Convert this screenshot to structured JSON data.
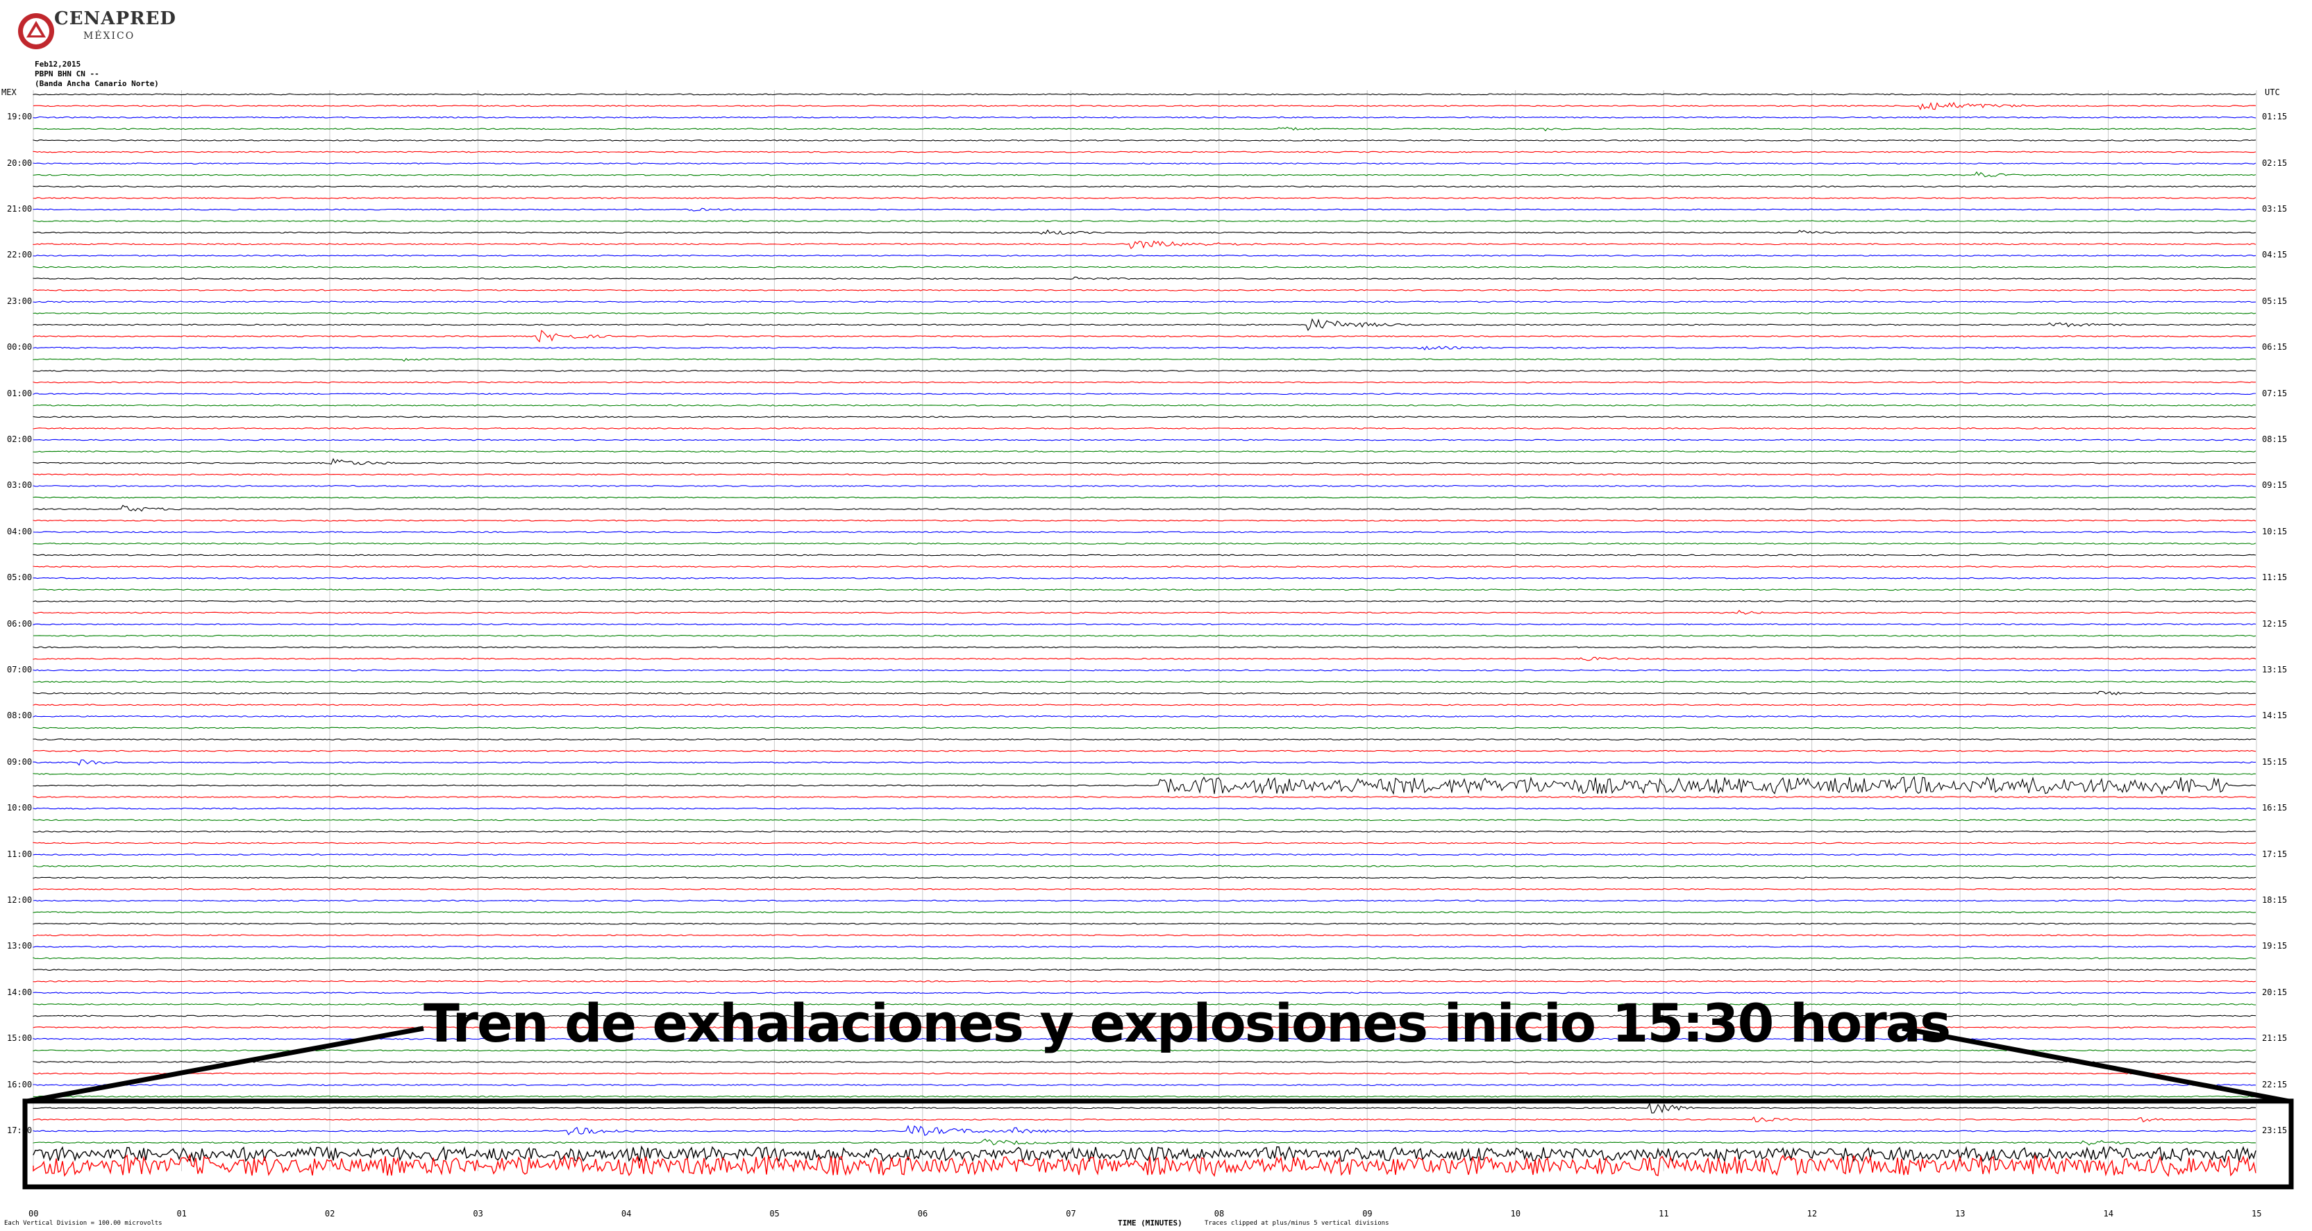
{
  "branding": {
    "logo_text": "CENAPRED",
    "logo_sub": "MÉXICO",
    "logo_color": "#c0272d"
  },
  "header": {
    "date": "Feb12,2015",
    "station": "PBPN BHN CN --",
    "station_name": "(Banda Ancha Canario Norte)"
  },
  "annotation": {
    "text": "Tren de exhalaciones y explosiones inicio 15:30 horas"
  },
  "footer": {
    "left": "Each Vertical Division = 100.00 microvolts",
    "middle": "Traces clipped at plus/minus 5 vertical divisions"
  },
  "chart_data": {
    "type": "line",
    "title": "",
    "xlabel": "TIME (MINUTES)",
    "x_ticks": [
      "00",
      "01",
      "02",
      "03",
      "04",
      "05",
      "06",
      "07",
      "08",
      "09",
      "10",
      "11",
      "12",
      "13",
      "14",
      "15"
    ],
    "xlim": [
      0,
      15
    ],
    "trace_colors": [
      "#000000",
      "#ff0000",
      "#0000ff",
      "#008000"
    ],
    "left_axis_label": "MEX",
    "right_axis_label": "UTC",
    "left_hour_labels": [
      "19:00",
      "20:00",
      "21:00",
      "22:00",
      "23:00",
      "00:00",
      "01:00",
      "02:00",
      "03:00",
      "04:00",
      "05:00",
      "06:00",
      "07:00",
      "08:00",
      "09:00",
      "10:00",
      "11:00",
      "12:00",
      "13:00",
      "14:00",
      "15:00",
      "16:00",
      "17:00"
    ],
    "right_hour_labels": [
      "01:15",
      "02:15",
      "03:15",
      "04:15",
      "05:15",
      "06:15",
      "07:15",
      "08:15",
      "09:15",
      "10:15",
      "11:15",
      "12:15",
      "13:15",
      "14:15",
      "15:15",
      "16:15",
      "17:15",
      "18:15",
      "19:15",
      "20:15",
      "21:15",
      "22:15",
      "23:15"
    ],
    "trace_count": 94,
    "grid": true,
    "highlighted_window": {
      "label": "15:30 start",
      "from_row": 88,
      "to_row": 94
    }
  }
}
